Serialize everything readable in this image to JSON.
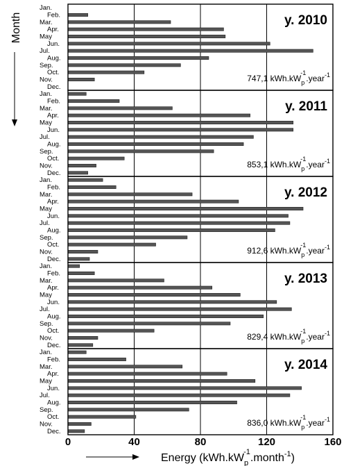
{
  "chart_data": {
    "type": "bar",
    "orientation": "horizontal",
    "ylabel": "Month",
    "xlabel_main": "Energy",
    "xlabel_unit": "(kWh.kW",
    "xlabel_unit_sub": "p",
    "xlabel_unit_sup": "-1",
    "xlabel_unit_end": ".month",
    "xlabel_unit_end_sup": "-1",
    "xlabel_unit_close": ")",
    "xlim": [
      0,
      160
    ],
    "x_ticks": [
      0,
      40,
      80,
      120,
      160
    ],
    "grid": "vertical lines at 40, 80, 120",
    "bar_color": "#555555",
    "total_unit_prefix": "kWh.kW",
    "total_unit_sub": "p",
    "total_unit_sup": "-1",
    "total_unit_end": ".year",
    "total_unit_end_sup": "-1",
    "panels": [
      {
        "year_label": "y. 2010",
        "total": "747,1",
        "months": [
          "Jan.",
          "Feb.",
          "Mar.",
          "Apr.",
          "May",
          "Jun.",
          "Jul.",
          "Aug.",
          "Sep.",
          "Oct.",
          "Nov.",
          "Dec."
        ],
        "values": [
          0,
          12,
          62,
          94,
          95,
          122,
          148,
          85,
          68,
          46,
          16,
          0
        ]
      },
      {
        "year_label": "y. 2011",
        "total": "853,1",
        "months": [
          "Jan.",
          "Feb.",
          "Mar.",
          "Apr.",
          "May",
          "Jun.",
          "Jul.",
          "Aug.",
          "Sep.",
          "Oct.",
          "Nov.",
          "Dec."
        ],
        "values": [
          11,
          31,
          63,
          110,
          136,
          136,
          112,
          106,
          88,
          34,
          17,
          12
        ]
      },
      {
        "year_label": "y. 2012",
        "total": "912,6",
        "months": [
          "Jan.",
          "Feb.",
          "Mar.",
          "Apr.",
          "May",
          "Jun.",
          "Jul.",
          "Aug.",
          "Sep.",
          "Oct.",
          "Nov.",
          "Dec."
        ],
        "values": [
          21,
          29,
          75,
          103,
          142,
          133,
          134,
          125,
          72,
          53,
          18,
          13
        ]
      },
      {
        "year_label": "y. 2013",
        "total": "829,4",
        "months": [
          "Jan.",
          "Feb.",
          "Mar.",
          "Apr.",
          "May",
          "Jun.",
          "Jul.",
          "Aug.",
          "Sep.",
          "Oct.",
          "Nov.",
          "Dec."
        ],
        "values": [
          7,
          16,
          58,
          87,
          104,
          126,
          135,
          118,
          98,
          52,
          18,
          15
        ]
      },
      {
        "year_label": "y. 2014",
        "total": "836,0",
        "months": [
          "Jan.",
          "Feb.",
          "Mar.",
          "Apr.",
          "May",
          "Jun.",
          "Jul.",
          "Aug.",
          "Sep.",
          "Oct.",
          "Nov.",
          "Dec."
        ],
        "values": [
          11,
          35,
          69,
          96,
          113,
          141,
          134,
          102,
          73,
          41,
          14,
          10
        ]
      }
    ]
  }
}
